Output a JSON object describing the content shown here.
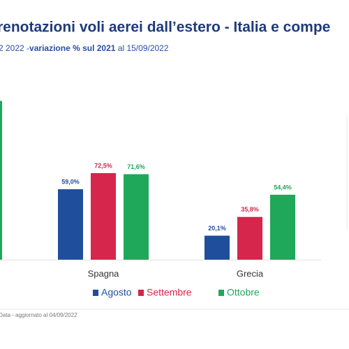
{
  "chart_data": {
    "type": "bar",
    "title": "renotazioni voli aerei dall’estero - Italia e compe",
    "subtitle_parts": [
      "2 2022 -",
      "variazione % sul 2021",
      " al 15/09/2022"
    ],
    "categories": [
      null,
      "Spagna",
      "Grecia"
    ],
    "series": [
      {
        "name": "Agosto",
        "color": "#1f4e9c",
        "values": [
          null,
          59.0,
          20.1
        ],
        "value_labels": [
          null,
          "59,0%",
          "20,1%"
        ]
      },
      {
        "name": "Settembre",
        "color": "#d6264b",
        "values": [
          null,
          72.5,
          35.8
        ],
        "value_labels": [
          null,
          "72,5%",
          "35,8%"
        ]
      },
      {
        "name": "Ottobre",
        "color": "#1fa85a",
        "values": [
          133,
          71.6,
          54.4
        ],
        "value_labels": [
          null,
          "71,6%",
          "54,4%"
        ]
      }
    ],
    "footnote": "Data - aggiornato al 04/09/2022"
  }
}
